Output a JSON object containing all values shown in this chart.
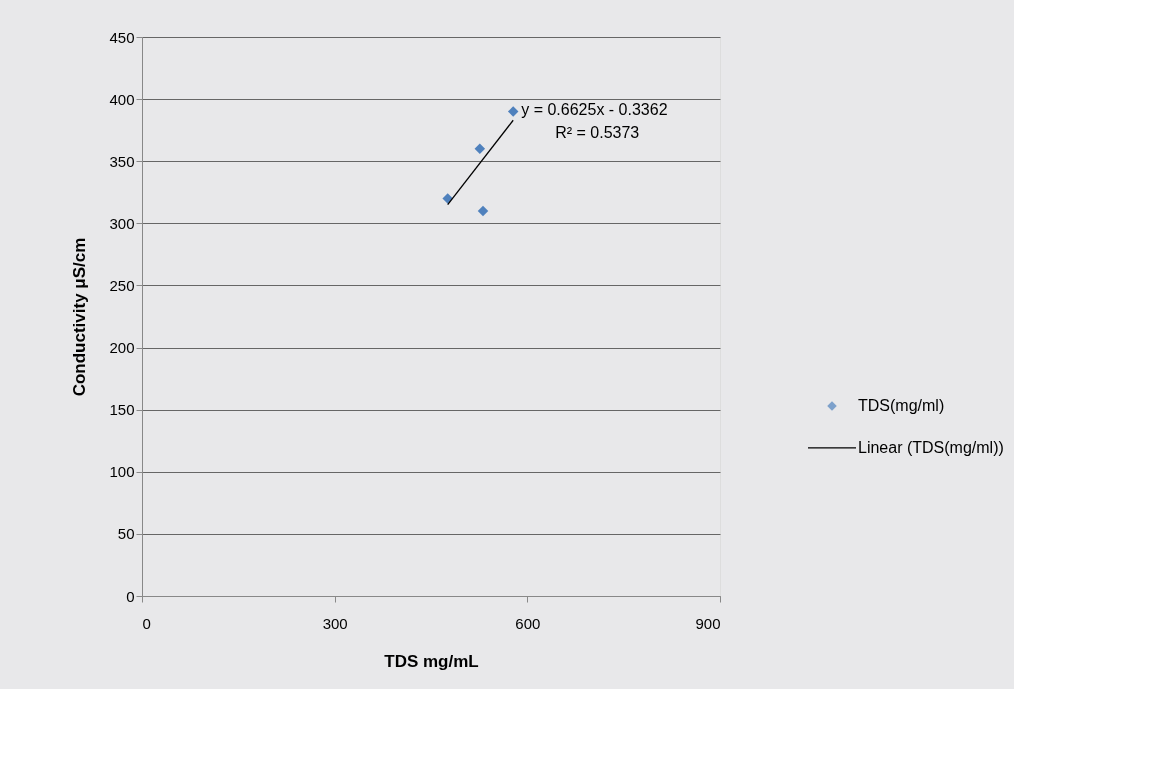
{
  "chart_data": {
    "type": "scatter",
    "xlabel": "TDS mg/mL",
    "ylabel": "Conductivity μS/cm",
    "xlim": [
      0,
      900
    ],
    "xticks": [
      0,
      300,
      600,
      900
    ],
    "ylim": [
      0,
      450
    ],
    "yticks": [
      0,
      50,
      100,
      150,
      200,
      250,
      300,
      350,
      400,
      450
    ],
    "grid": "y",
    "legend": "right",
    "series": [
      {
        "name": "TDS(mg/ml)",
        "marker": "diamond",
        "color": "#4f81bd",
        "x": [
          476,
          526,
          531,
          578
        ],
        "values": [
          320,
          360,
          310,
          390
        ]
      },
      {
        "name": "Linear (TDS(mg/ml))",
        "type": "line",
        "color": "#000000",
        "x": [
          476,
          578
        ],
        "values": [
          315,
          383
        ]
      }
    ],
    "annotations": [
      "y = 0.6625x - 0.3362",
      "R² = 0.5373"
    ]
  }
}
